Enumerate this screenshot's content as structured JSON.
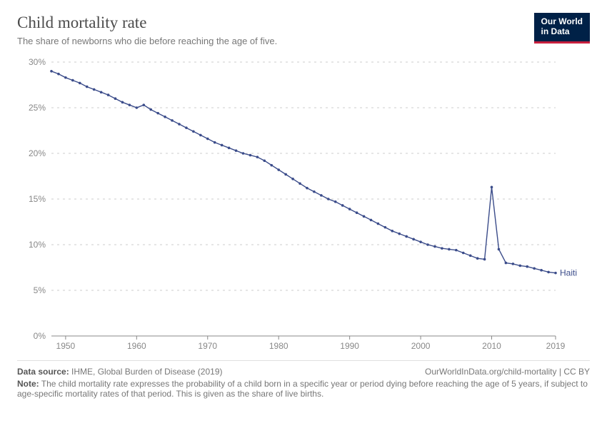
{
  "header": {
    "title": "Child mortality rate",
    "subtitle": "The share of newborns who die before reaching the age of five.",
    "logo_line1": "Our World",
    "logo_line2": "in Data"
  },
  "chart": {
    "type": "line",
    "background_color": "#ffffff",
    "grid_color": "#cccccc",
    "axis_color": "#888888",
    "tick_font_size": 12,
    "y": {
      "min": 0,
      "max": 30,
      "ticks": [
        0,
        5,
        10,
        15,
        20,
        25,
        30
      ],
      "tick_labels": [
        "0%",
        "5%",
        "10%",
        "15%",
        "20%",
        "25%",
        "30%"
      ]
    },
    "x": {
      "min": 1948,
      "max": 2019,
      "ticks": [
        1950,
        1960,
        1970,
        1980,
        1990,
        2000,
        2010,
        2019
      ],
      "tick_labels": [
        "1950",
        "1960",
        "1970",
        "1980",
        "1990",
        "2000",
        "2010",
        "2019"
      ]
    },
    "series": [
      {
        "label": "Haiti",
        "color": "#3b4c8a",
        "line_width": 1.4,
        "marker_radius": 1.8,
        "x": [
          1948,
          1949,
          1950,
          1951,
          1952,
          1953,
          1954,
          1955,
          1956,
          1957,
          1958,
          1959,
          1960,
          1961,
          1962,
          1963,
          1964,
          1965,
          1966,
          1967,
          1968,
          1969,
          1970,
          1971,
          1972,
          1973,
          1974,
          1975,
          1976,
          1977,
          1978,
          1979,
          1980,
          1981,
          1982,
          1983,
          1984,
          1985,
          1986,
          1987,
          1988,
          1989,
          1990,
          1991,
          1992,
          1993,
          1994,
          1995,
          1996,
          1997,
          1998,
          1999,
          2000,
          2001,
          2002,
          2003,
          2004,
          2005,
          2006,
          2007,
          2008,
          2009,
          2010,
          2011,
          2012,
          2013,
          2014,
          2015,
          2016,
          2017,
          2018,
          2019
        ],
        "y": [
          29.0,
          28.7,
          28.3,
          28.0,
          27.7,
          27.3,
          27.0,
          26.7,
          26.4,
          26.0,
          25.6,
          25.3,
          25.0,
          25.3,
          24.8,
          24.4,
          24.0,
          23.6,
          23.2,
          22.8,
          22.4,
          22.0,
          21.6,
          21.2,
          20.9,
          20.6,
          20.3,
          20.0,
          19.8,
          19.6,
          19.2,
          18.7,
          18.2,
          17.7,
          17.2,
          16.7,
          16.2,
          15.8,
          15.4,
          15.0,
          14.7,
          14.3,
          13.9,
          13.5,
          13.1,
          12.7,
          12.3,
          11.9,
          11.5,
          11.2,
          10.9,
          10.6,
          10.3,
          10.0,
          9.8,
          9.6,
          9.5,
          9.4,
          9.1,
          8.8,
          8.5,
          8.4,
          16.3,
          9.5,
          8.0,
          7.9,
          7.7,
          7.6,
          7.4,
          7.2,
          7.0,
          6.9
        ]
      }
    ]
  },
  "footer": {
    "source_label": "Data source:",
    "source_value": "IHME, Global Burden of Disease (2019)",
    "url": "OurWorldInData.org/child-mortality",
    "license": "CC BY",
    "note_label": "Note:",
    "note_value": "The child mortality rate expresses the probability of a child born in a specific year or period dying before reaching the age of 5 years, if subject to age-specific mortality rates of that period. This is given as the share of live births."
  }
}
